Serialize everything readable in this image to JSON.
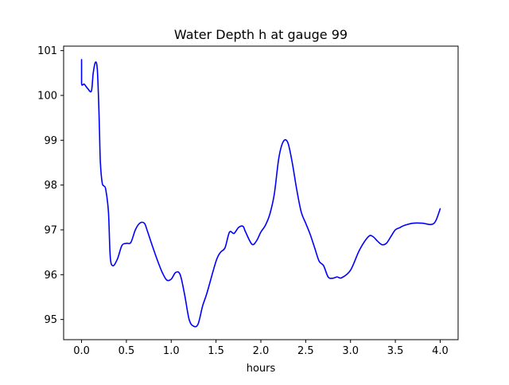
{
  "chart_data": {
    "type": "line",
    "title": "Water Depth h at gauge 99",
    "xlabel": "hours",
    "ylabel": "",
    "xlim": [
      -0.2,
      4.2
    ],
    "ylim": [
      94.55,
      101.1
    ],
    "xticks": [
      0.0,
      0.5,
      1.0,
      1.5,
      2.0,
      2.5,
      3.0,
      3.5,
      4.0
    ],
    "xtick_labels": [
      "0.0",
      "0.5",
      "1.0",
      "1.5",
      "2.0",
      "2.5",
      "3.0",
      "3.5",
      "4.0"
    ],
    "yticks": [
      95,
      96,
      97,
      98,
      99,
      100,
      101
    ],
    "ytick_labels": [
      "95",
      "96",
      "97",
      "98",
      "99",
      "100",
      "101"
    ],
    "grid": false,
    "legend": "none",
    "series": [
      {
        "color": "#0000ff",
        "x": [
          0,
          0,
          0.03,
          0.07,
          0.11,
          0.13,
          0.155,
          0.175,
          0.19,
          0.2,
          0.21,
          0.23,
          0.25,
          0.27,
          0.3,
          0.32,
          0.35,
          0.4,
          0.45,
          0.5,
          0.55,
          0.6,
          0.65,
          0.7,
          0.73,
          0.78,
          0.85,
          0.9,
          0.95,
          1.0,
          1.05,
          1.1,
          1.15,
          1.2,
          1.25,
          1.3,
          1.35,
          1.4,
          1.5,
          1.55,
          1.6,
          1.65,
          1.7,
          1.75,
          1.8,
          1.83,
          1.9,
          1.95,
          2.0,
          2.05,
          2.1,
          2.15,
          2.2,
          2.25,
          2.3,
          2.35,
          2.4,
          2.45,
          2.5,
          2.55,
          2.6,
          2.65,
          2.7,
          2.75,
          2.8,
          2.85,
          2.9,
          3.0,
          3.1,
          3.2,
          3.25,
          3.3,
          3.35,
          3.4,
          3.45,
          3.5,
          3.55,
          3.6,
          3.7,
          3.8,
          3.9,
          3.95,
          4.0
        ],
        "y": [
          100.8,
          100.27,
          100.25,
          100.15,
          100.1,
          100.5,
          100.74,
          100.6,
          99.9,
          99.2,
          98.5,
          98.05,
          97.98,
          97.9,
          97.4,
          96.4,
          96.2,
          96.35,
          96.65,
          96.7,
          96.72,
          97.0,
          97.15,
          97.15,
          97.0,
          96.7,
          96.3,
          96.05,
          95.88,
          95.9,
          96.05,
          96.0,
          95.55,
          95.0,
          94.85,
          94.9,
          95.3,
          95.6,
          96.3,
          96.5,
          96.6,
          96.95,
          96.92,
          97.05,
          97.08,
          96.95,
          96.68,
          96.75,
          96.95,
          97.1,
          97.35,
          97.8,
          98.6,
          98.97,
          98.95,
          98.5,
          97.9,
          97.4,
          97.15,
          96.9,
          96.6,
          96.3,
          96.2,
          95.95,
          95.92,
          95.95,
          95.93,
          96.1,
          96.55,
          96.85,
          96.85,
          96.75,
          96.67,
          96.7,
          96.85,
          97.0,
          97.05,
          97.1,
          97.15,
          97.15,
          97.12,
          97.2,
          97.47
        ]
      }
    ]
  }
}
